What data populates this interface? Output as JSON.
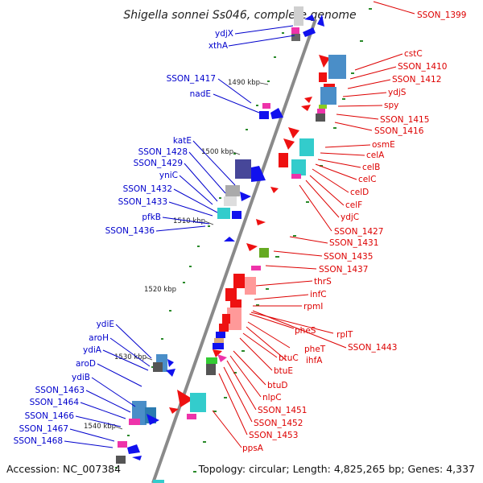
{
  "title": "Shigella sonnei Ss046, complete genome",
  "footer": {
    "accession": "Accession: NC_007384",
    "topology": "Topology: circular; Length: 4,825,265 bp; Genes: 4,337"
  },
  "colors": {
    "forward_label": "#0000cc",
    "reverse_label": "#dd0000",
    "backbone": "#808080",
    "tick": "#2a8a2a"
  },
  "kbp_marks": [
    "1490 kbp",
    "1500 kbp",
    "1510 kbp",
    "1520 kbp",
    "1530 kbp",
    "1540 kbp"
  ],
  "left_labels": [
    "ydjX",
    "xthA",
    "SSON_1417",
    "nadE",
    "katE",
    "SSON_1428",
    "SSON_1429",
    "yniC",
    "SSON_1432",
    "SSON_1433",
    "pfkB",
    "SSON_1436",
    "ydiE",
    "aroH",
    "ydiA",
    "aroD",
    "ydiB",
    "SSON_1463",
    "SSON_1464",
    "SSON_1466",
    "SSON_1467",
    "SSON_1468"
  ],
  "right_labels": [
    "SSON_1399",
    "cstC",
    "SSON_1410",
    "SSON_1412",
    "ydjS",
    "spy",
    "SSON_1415",
    "SSON_1416",
    "osmE",
    "celA",
    "celB",
    "celC",
    "celD",
    "celF",
    "ydjC",
    "SSON_1427",
    "SSON_1431",
    "SSON_1435",
    "SSON_1437",
    "thrS",
    "infC",
    "rpmI",
    "pheS",
    "rplT",
    "SSON_1443",
    "pheT",
    "ihfA",
    "btuC",
    "btuE",
    "btuD",
    "nlpC",
    "SSON_1451",
    "SSON_1452",
    "SSON_1453",
    "ppsA"
  ]
}
